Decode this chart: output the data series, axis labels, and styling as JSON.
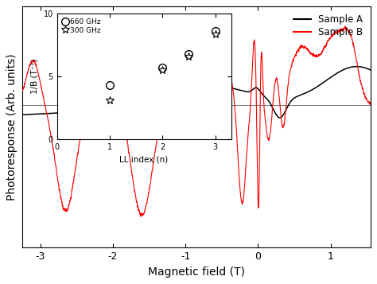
{
  "xlabel": "Magnetic field (T)",
  "ylabel": "Photoresponse (Arb. units)",
  "xlim": [
    -3.25,
    1.55
  ],
  "legend_labels": [
    "Sample A",
    "Sample B"
  ],
  "legend_colors": [
    "black",
    "red"
  ],
  "inset": {
    "xlabel": "LL index (n)",
    "ylabel": "1/B (T⁻¹)",
    "xlim": [
      0,
      3.3
    ],
    "ylim": [
      0,
      10
    ],
    "ytick_labels": [
      "0",
      "",
      "5",
      "",
      "10"
    ],
    "yticks": [
      0,
      2.5,
      5,
      7.5,
      10
    ],
    "xticks": [
      0,
      1,
      2,
      3
    ],
    "circle_label": "660 GHz",
    "star_label": "300 GHz",
    "circle_data_x": [
      1.0,
      2.0,
      2.5,
      3.0
    ],
    "circle_data_y": [
      4.3,
      5.7,
      6.8,
      8.6
    ],
    "star_data_x": [
      1.0,
      2.0,
      2.5,
      3.0
    ],
    "star_data_y": [
      3.1,
      5.5,
      6.6,
      8.4
    ]
  }
}
